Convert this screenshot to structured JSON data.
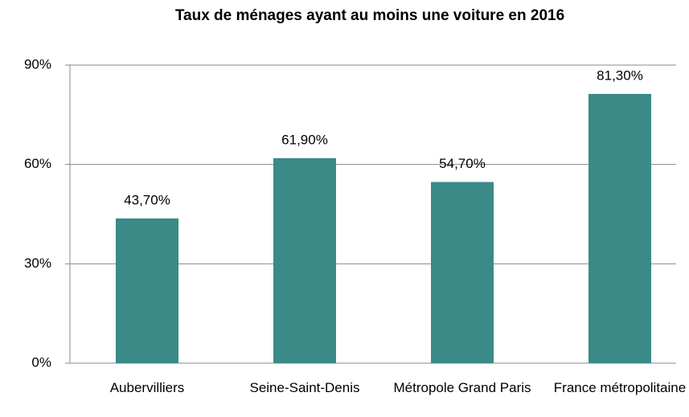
{
  "chart_data": {
    "type": "bar",
    "title": "Taux de ménages ayant au moins une voiture en 2016",
    "categories": [
      "Aubervilliers",
      "Seine-Saint-Denis",
      "Métropole Grand Paris",
      "France métropolitaine"
    ],
    "values": [
      43.7,
      61.9,
      54.7,
      81.3
    ],
    "value_labels": [
      "43,70%",
      "61,90%",
      "54,70%",
      "81,30%"
    ],
    "color": "#3a8a88",
    "ylim": [
      0,
      90
    ],
    "yticks": [
      {
        "value": 0,
        "label": "0%"
      },
      {
        "value": 30,
        "label": "30%"
      },
      {
        "value": 60,
        "label": "60%"
      },
      {
        "value": 90,
        "label": "90%"
      }
    ],
    "grid": true
  }
}
